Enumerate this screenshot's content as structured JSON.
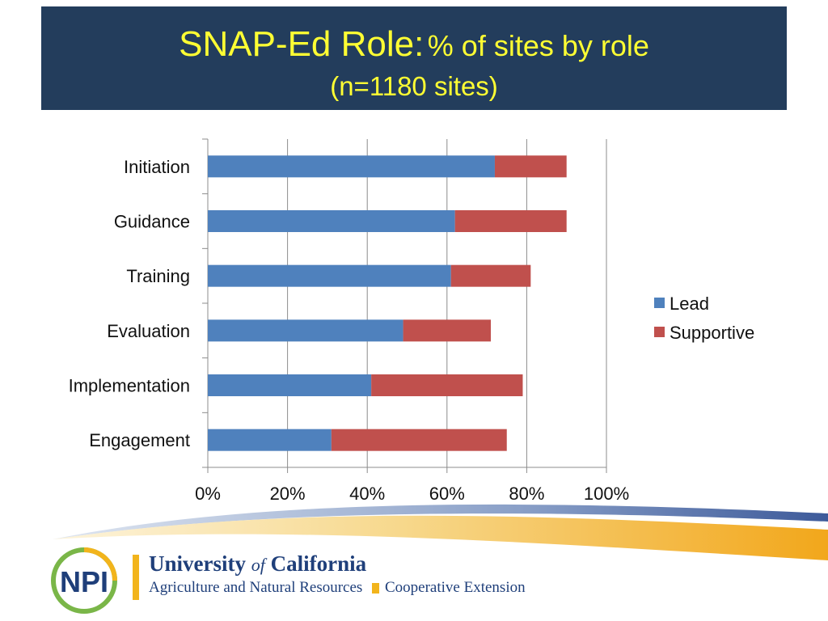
{
  "slide": {
    "title_main": "SNAP-Ed Role:",
    "title_sub": "% of sites by role",
    "title_line2": "(n=1180 sites)"
  },
  "chart_data": {
    "type": "bar",
    "orientation": "horizontal",
    "stacked": true,
    "categories": [
      "Initiation",
      "Guidance",
      "Training",
      "Evaluation",
      "Implementation",
      "Engagement"
    ],
    "series": [
      {
        "name": "Lead",
        "color": "#4f81bd",
        "values": [
          72,
          62,
          61,
          49,
          41,
          31
        ]
      },
      {
        "name": "Supportive",
        "color": "#c0504d",
        "values": [
          18,
          28,
          20,
          22,
          38,
          44
        ]
      }
    ],
    "xlim": [
      0,
      100
    ],
    "x_ticks": [
      "0%",
      "20%",
      "40%",
      "60%",
      "80%",
      "100%"
    ],
    "grid": "vertical",
    "legend_position": "right"
  },
  "footer": {
    "logo_left_text": "NPI",
    "uc_title_a": "University",
    "uc_title_of": "of",
    "uc_title_b": "California",
    "uc_subtitle": "Agriculture and Natural Resources",
    "uc_extension": "Cooperative Extension",
    "accent_colors": {
      "gold": "#f2b41c",
      "blue": "#1f3f7a",
      "green": "#7ab648"
    }
  }
}
